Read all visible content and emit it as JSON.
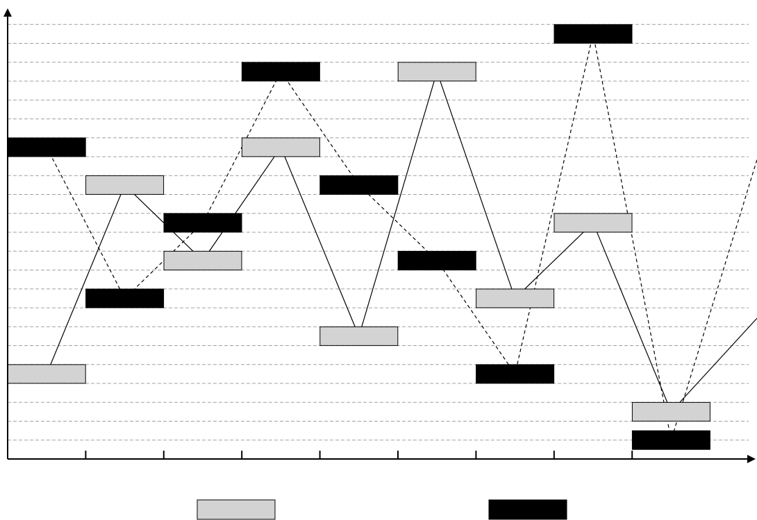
{
  "chart_data": {
    "type": "line",
    "title": "",
    "xlabel": "",
    "ylabel": "",
    "x": [
      1,
      2,
      3,
      4,
      5,
      6,
      7,
      8,
      9,
      10
    ],
    "xlim": [
      0.5,
      10.5
    ],
    "ylim": [
      0,
      23
    ],
    "grid": true,
    "legend_position": "bottom",
    "series": [
      {
        "name": "",
        "line_style": "solid",
        "marker_color": "#d3d3d3",
        "values": [
          4.5,
          14.5,
          10.5,
          16.5,
          6.5,
          20.5,
          8.5,
          12.5,
          2.5,
          7.0
        ],
        "extrapolated_end": 7.0
      },
      {
        "name": "",
        "line_style": "dashed",
        "marker_color": "#000000",
        "values": [
          16.5,
          8.5,
          12.5,
          20.5,
          14.5,
          10.5,
          4.5,
          22.5,
          1.0,
          14.5
        ],
        "extrapolated_end": 14.5
      }
    ],
    "colors": {
      "axis": "#000000",
      "grid": "#a0a0a0",
      "light": "#d3d3d3",
      "dark": "#000000"
    }
  }
}
